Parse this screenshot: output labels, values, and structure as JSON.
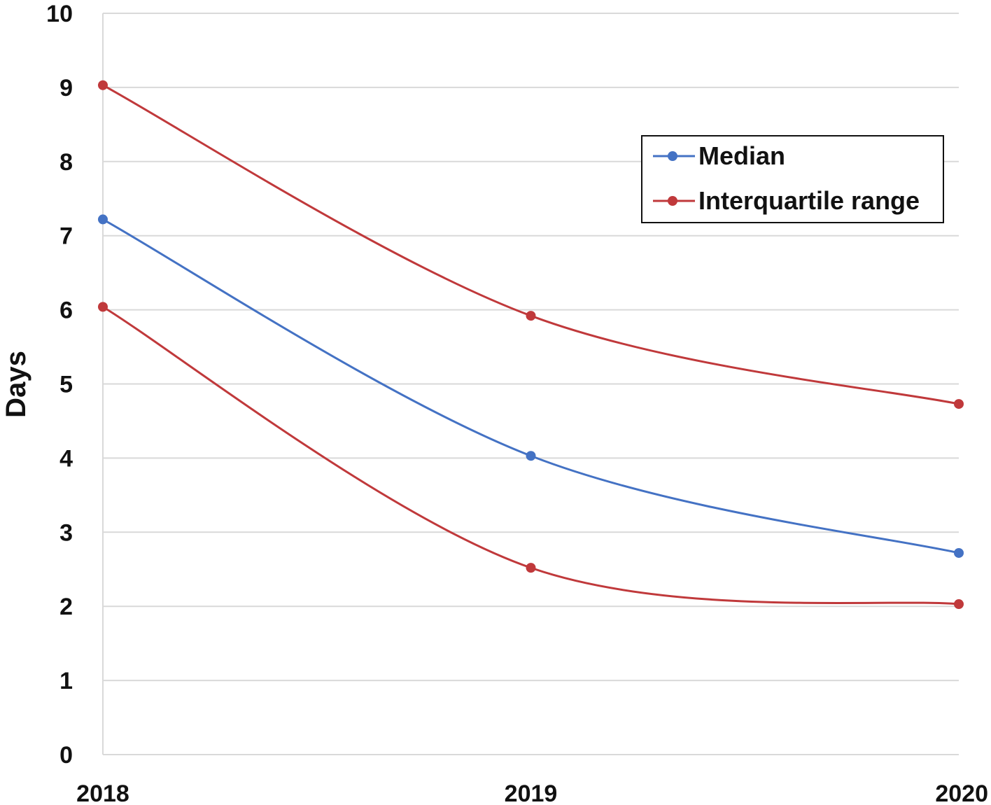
{
  "chart_data": {
    "type": "line",
    "title": "",
    "xlabel": "",
    "ylabel": "Days",
    "x": [
      "2018",
      "2019",
      "2020"
    ],
    "ylim": [
      0,
      10
    ],
    "y_ticks": [
      "0",
      "1",
      "2",
      "3",
      "4",
      "5",
      "6",
      "7",
      "8",
      "9",
      "10"
    ],
    "grid": "horizontal",
    "legend_position": "top-right",
    "smooth": true,
    "series": [
      {
        "name": "Median",
        "color": "#4472C4",
        "values": [
          7.22,
          4.03,
          2.72
        ]
      },
      {
        "name": "Interquartile range",
        "color": "#C0393B",
        "values": [
          9.03,
          5.92,
          4.73
        ]
      },
      {
        "name": "Interquartile range",
        "color": "#C0393B",
        "values": [
          6.04,
          2.52,
          2.03
        ],
        "show_in_legend": false
      }
    ],
    "legend": [
      {
        "label": "Median",
        "color": "#4472C4"
      },
      {
        "label": "Interquartile range",
        "color": "#C0393B"
      }
    ]
  }
}
